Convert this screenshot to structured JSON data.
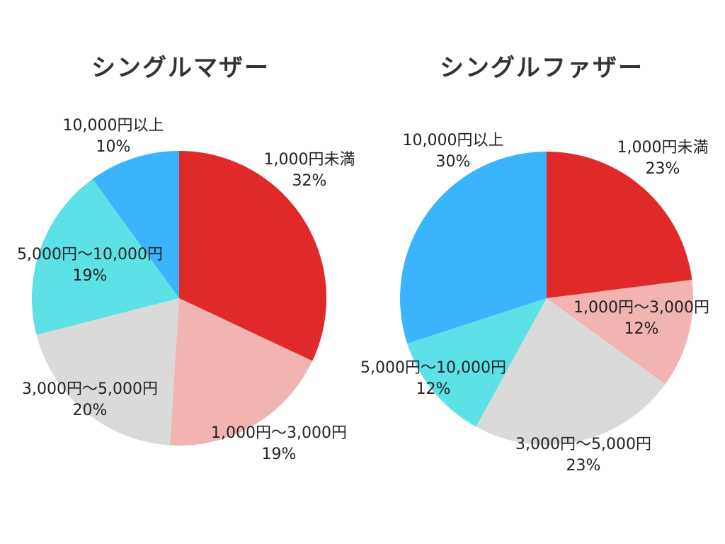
{
  "colors": {
    "red": "#e02a2a",
    "pink": "#f2b3b3",
    "gray": "#dadada",
    "cyan": "#5ce1e6",
    "blue": "#3ab4fd"
  },
  "chart_data": [
    {
      "type": "pie",
      "title": "シングルマザー",
      "slices": [
        {
          "name": "1,000円未満",
          "value": 32,
          "label": "32%",
          "color": "#e02a2a"
        },
        {
          "name": "1,000円〜3,000円",
          "value": 19,
          "label": "19%",
          "color": "#f2b3b3"
        },
        {
          "name": "3,000円〜5,000円",
          "value": 20,
          "label": "20%",
          "color": "#dadada"
        },
        {
          "name": "5,000円〜10,000円",
          "value": 19,
          "label": "19%",
          "color": "#5ce1e6"
        },
        {
          "name": "10,000円以上",
          "value": 10,
          "label": "10%",
          "color": "#3ab4fd"
        }
      ]
    },
    {
      "type": "pie",
      "title": "シングルファザー",
      "slices": [
        {
          "name": "1,000円未満",
          "value": 23,
          "label": "23%",
          "color": "#e02a2a"
        },
        {
          "name": "1,000円〜3,000円",
          "value": 12,
          "label": "12%",
          "color": "#f2b3b3"
        },
        {
          "name": "3,000円〜5,000円",
          "value": 23,
          "label": "23%",
          "color": "#dadada"
        },
        {
          "name": "5,000円〜10,000円",
          "value": 12,
          "label": "12%",
          "color": "#5ce1e6"
        },
        {
          "name": "10,000円以上",
          "value": 30,
          "label": "30%",
          "color": "#3ab4fd"
        }
      ]
    }
  ]
}
